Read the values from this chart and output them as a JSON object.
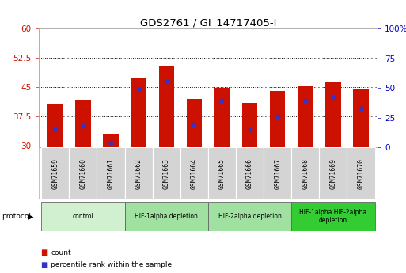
{
  "title": "GDS2761 / GI_14717405-I",
  "samples": [
    "GSM71659",
    "GSM71660",
    "GSM71661",
    "GSM71662",
    "GSM71663",
    "GSM71664",
    "GSM71665",
    "GSM71666",
    "GSM71667",
    "GSM71668",
    "GSM71669",
    "GSM71670"
  ],
  "bar_tops": [
    40.5,
    41.5,
    33.0,
    47.5,
    50.5,
    42.0,
    44.8,
    41.0,
    44.0,
    45.2,
    46.5,
    44.5
  ],
  "bar_bottom": 29.5,
  "blue_markers": [
    34.5,
    35.0,
    30.5,
    44.5,
    46.5,
    35.5,
    41.5,
    34.0,
    37.5,
    41.5,
    42.5,
    39.5
  ],
  "left_yticks": [
    30,
    37.5,
    45,
    52.5,
    60
  ],
  "right_ytick_labels": [
    "0",
    "25",
    "50",
    "75",
    "100%"
  ],
  "right_ytick_percents": [
    0,
    25,
    50,
    75,
    100
  ],
  "ylim": [
    29.5,
    60
  ],
  "bar_color": "#cc1100",
  "blue_color": "#3333cc",
  "bg_color": "#ffffff",
  "left_axis_color": "#cc1100",
  "right_axis_color": "#0000cc",
  "bar_width": 0.55,
  "protocol_groups": [
    {
      "label": "control",
      "start": 0,
      "end": 2,
      "color": "#d0f0d0"
    },
    {
      "label": "HIF-1alpha depletion",
      "start": 3,
      "end": 5,
      "color": "#a0e0a0"
    },
    {
      "label": "HIF-2alpha depletion",
      "start": 6,
      "end": 8,
      "color": "#a0e0a0"
    },
    {
      "label": "HIF-1alpha HIF-2alpha\ndepletion",
      "start": 9,
      "end": 11,
      "color": "#33cc33"
    }
  ]
}
